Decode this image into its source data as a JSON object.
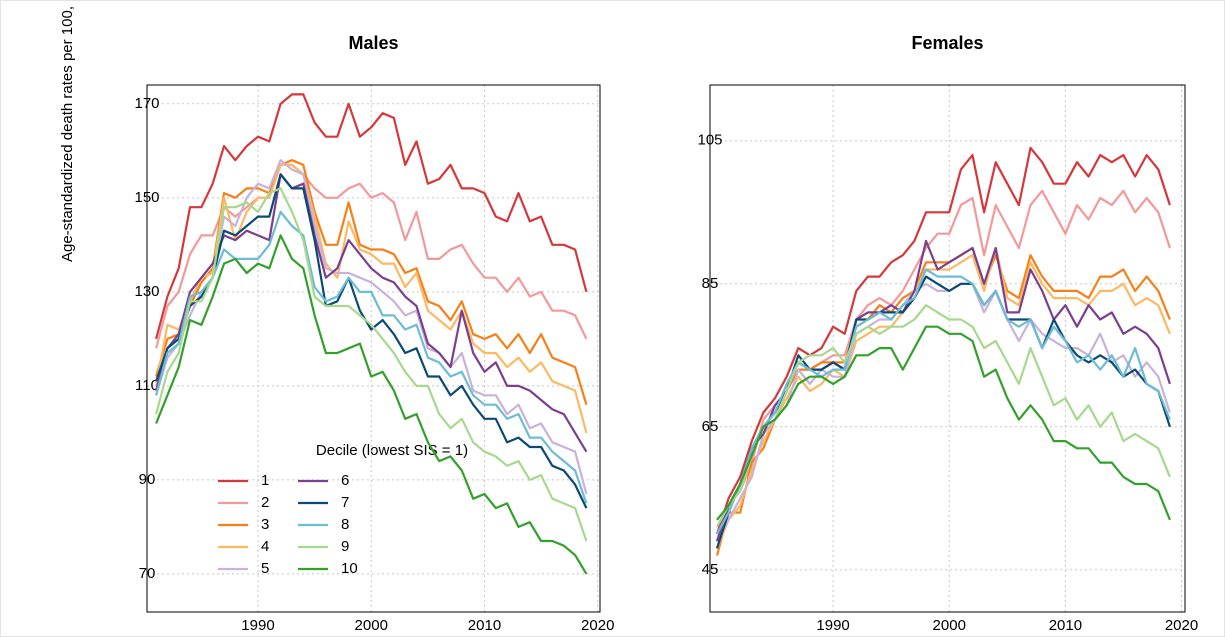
{
  "chart_data": [
    {
      "type": "line",
      "title": "Males",
      "ylabel": "Age-standardized death rates per 100,",
      "legend_title": "Decile (lowest SIS = 1)",
      "x": [
        1981,
        1982,
        1983,
        1984,
        1985,
        1986,
        1987,
        1988,
        1989,
        1990,
        1991,
        1992,
        1993,
        1994,
        1995,
        1996,
        1997,
        1998,
        1999,
        2000,
        2001,
        2002,
        2003,
        2004,
        2005,
        2006,
        2007,
        2008,
        2009,
        2010,
        2011,
        2012,
        2013,
        2014,
        2015,
        2016,
        2017,
        2018,
        2019
      ],
      "xlim": [
        1980.2,
        2020.2
      ],
      "xticks": [
        1990,
        2000,
        2010,
        2020
      ],
      "ylim": [
        61.9,
        174
      ],
      "yticks": [
        70,
        90,
        110,
        130,
        150,
        170
      ],
      "grid": true,
      "series": [
        {
          "name": "1",
          "color": "#d6373b",
          "values": [
            120,
            129,
            135,
            148,
            148,
            153,
            161,
            158,
            161,
            163,
            162,
            170,
            172,
            172,
            166,
            163,
            163,
            170,
            163,
            165,
            168,
            167,
            157,
            162,
            153,
            154,
            157,
            152,
            152,
            151,
            146,
            145,
            151,
            145,
            146,
            140,
            140,
            139,
            130
          ]
        },
        {
          "name": "2",
          "color": "#f4989a",
          "values": [
            118,
            127,
            130,
            138,
            142,
            142,
            148,
            146,
            148,
            150,
            150,
            157,
            157,
            155,
            152,
            150,
            150,
            152,
            153,
            150,
            151,
            149,
            141,
            147,
            137,
            137,
            139,
            140,
            136,
            133,
            133,
            130,
            133,
            129,
            130,
            126,
            126,
            125,
            120
          ]
        },
        {
          "name": "3",
          "color": "#f77f16",
          "values": [
            112,
            120,
            121,
            127,
            132,
            135,
            151,
            150,
            152,
            152,
            151,
            157,
            158,
            157,
            147,
            140,
            140,
            149,
            140,
            139,
            139,
            138,
            134,
            135,
            128,
            127,
            124,
            128,
            121,
            120,
            121,
            118,
            121,
            117,
            121,
            116,
            115,
            114,
            106
          ]
        },
        {
          "name": "4",
          "color": "#fdb863",
          "values": [
            110,
            123,
            122,
            128,
            133,
            134,
            150,
            141,
            147,
            150,
            150,
            157,
            157,
            155,
            146,
            136,
            133,
            145,
            139,
            138,
            136,
            136,
            131,
            134,
            126,
            124,
            122,
            126,
            119,
            117,
            117,
            114,
            116,
            113,
            115,
            111,
            110,
            109,
            100
          ]
        },
        {
          "name": "5",
          "color": "#c9b2d9",
          "values": [
            108,
            116,
            119,
            125,
            130,
            133,
            146,
            144,
            150,
            153,
            152,
            158,
            156,
            155,
            144,
            135,
            134,
            134,
            133,
            132,
            130,
            128,
            125,
            126,
            118,
            117,
            114,
            117,
            109,
            108,
            108,
            104,
            106,
            101,
            102,
            98,
            97,
            96,
            87
          ]
        },
        {
          "name": "6",
          "color": "#7b3f8f",
          "values": [
            109,
            118,
            121,
            130,
            133,
            136,
            142,
            141,
            143,
            142,
            141,
            155,
            152,
            153,
            142,
            133,
            135,
            141,
            138,
            135,
            133,
            132,
            129,
            127,
            119,
            117,
            114,
            126,
            117,
            113,
            115,
            110,
            110,
            109,
            107,
            105,
            104,
            100,
            96
          ]
        },
        {
          "name": "7",
          "color": "#0b4a74",
          "values": [
            111,
            118,
            120,
            127,
            129,
            133,
            143,
            142,
            144,
            146,
            146,
            155,
            152,
            152,
            141,
            127,
            128,
            133,
            126,
            122,
            124,
            121,
            117,
            118,
            112,
            112,
            108,
            110,
            106,
            103,
            103,
            98,
            99,
            97,
            97,
            93,
            92,
            89,
            84
          ]
        },
        {
          "name": "8",
          "color": "#6bbdd6",
          "values": [
            108,
            117,
            119,
            129,
            130,
            133,
            139,
            137,
            137,
            137,
            140,
            147,
            144,
            142,
            131,
            128,
            129,
            133,
            130,
            130,
            125,
            125,
            122,
            123,
            116,
            115,
            112,
            113,
            108,
            106,
            106,
            103,
            104,
            99,
            99,
            96,
            94,
            92,
            85
          ]
        },
        {
          "name": "9",
          "color": "#a8d88e",
          "values": [
            104,
            113,
            117,
            128,
            128,
            133,
            148,
            148,
            149,
            147,
            151,
            152,
            147,
            141,
            129,
            127,
            127,
            127,
            125,
            123,
            120,
            117,
            113,
            110,
            110,
            104,
            101,
            103,
            98,
            96,
            95,
            93,
            94,
            90,
            91,
            86,
            85,
            84,
            77
          ]
        },
        {
          "name": "10",
          "color": "#33a02c",
          "values": [
            102,
            108,
            114,
            124,
            123,
            129,
            136,
            137,
            134,
            136,
            135,
            142,
            137,
            135,
            125,
            117,
            117,
            118,
            119,
            112,
            113,
            109,
            103,
            104,
            98,
            94,
            95,
            92,
            86,
            87,
            84,
            85,
            80,
            81,
            77,
            77,
            76,
            74,
            70
          ]
        }
      ]
    },
    {
      "type": "line",
      "title": "Females",
      "x": [
        1980,
        1981,
        1982,
        1983,
        1984,
        1985,
        1986,
        1987,
        1988,
        1989,
        1990,
        1991,
        1992,
        1993,
        1994,
        1995,
        1996,
        1997,
        1998,
        1999,
        2000,
        2001,
        2002,
        2003,
        2004,
        2005,
        2006,
        2007,
        2008,
        2009,
        2010,
        2011,
        2012,
        2013,
        2014,
        2015,
        2016,
        2017,
        2018,
        2019
      ],
      "xlim": [
        1979.4,
        2020.3
      ],
      "xticks": [
        1990,
        2000,
        2010,
        2020
      ],
      "ylim": [
        39.1,
        112.8
      ],
      "yticks": [
        45,
        65,
        85,
        105
      ],
      "grid": true,
      "series": [
        {
          "color": "#d6373b",
          "values": [
            50,
            55,
            58,
            63,
            67,
            69,
            72,
            76,
            75,
            76,
            79,
            78,
            84,
            86,
            86,
            88,
            89,
            91,
            95,
            95,
            95,
            101,
            103,
            95,
            102,
            99,
            96,
            104,
            102,
            99,
            99,
            102,
            100,
            103,
            102,
            103,
            100,
            103,
            101,
            96
          ]
        },
        {
          "color": "#f4989a",
          "values": [
            49,
            54,
            56,
            60,
            66,
            68,
            70,
            74,
            73,
            74,
            75,
            75,
            80,
            82,
            83,
            82,
            84,
            87,
            90,
            92,
            92,
            96,
            97,
            89,
            96,
            93,
            90,
            96,
            98,
            95,
            92,
            96,
            94,
            97,
            96,
            98,
            95,
            97,
            95,
            90
          ]
        },
        {
          "color": "#f77f16",
          "values": [
            47,
            53,
            53,
            60,
            62,
            66,
            70,
            73,
            73,
            74,
            74,
            74,
            79,
            80,
            82,
            81,
            83,
            84,
            88,
            88,
            88,
            89,
            90,
            85,
            89,
            84,
            83,
            89,
            86,
            84,
            84,
            84,
            83,
            86,
            86,
            87,
            84,
            86,
            84,
            80
          ]
        },
        {
          "color": "#fdb863",
          "values": [
            48,
            52,
            54,
            59,
            63,
            66,
            69,
            72,
            70,
            71,
            73,
            72,
            77,
            78,
            79,
            79,
            81,
            84,
            87,
            87,
            87,
            88,
            89,
            84,
            90,
            83,
            82,
            88,
            85,
            83,
            83,
            83,
            82,
            84,
            84,
            85,
            82,
            83,
            82,
            78
          ]
        },
        {
          "color": "#c9b2d9",
          "values": [
            49,
            52,
            55,
            58,
            64,
            66,
            68,
            73,
            71,
            73,
            72,
            72,
            78,
            79,
            80,
            80,
            82,
            84,
            85,
            84,
            84,
            85,
            85,
            81,
            84,
            80,
            77,
            80,
            78,
            77,
            76,
            76,
            75,
            78,
            74,
            75,
            72,
            74,
            72,
            67
          ]
        },
        {
          "color": "#7b3f8f",
          "values": [
            49,
            54,
            57,
            62,
            64,
            68,
            70,
            74,
            73,
            73,
            74,
            73,
            80,
            81,
            81,
            82,
            81,
            84,
            91,
            87,
            88,
            89,
            90,
            85,
            90,
            81,
            81,
            87,
            84,
            80,
            82,
            79,
            82,
            80,
            81,
            78,
            79,
            78,
            76,
            71
          ]
        },
        {
          "color": "#0b4a74",
          "values": [
            48,
            53,
            57,
            62,
            65,
            67,
            70,
            75,
            73,
            73,
            74,
            73,
            80,
            80,
            81,
            81,
            81,
            83,
            86,
            85,
            84,
            85,
            85,
            82,
            84,
            80,
            80,
            80,
            76,
            80,
            77,
            75,
            74,
            75,
            74,
            72,
            73,
            71,
            70,
            65
          ]
        },
        {
          "color": "#6bbdd6",
          "values": [
            50,
            53,
            57,
            62,
            65,
            67,
            71,
            74,
            73,
            72,
            73,
            73,
            79,
            80,
            81,
            80,
            82,
            83,
            87,
            86,
            86,
            86,
            85,
            82,
            84,
            80,
            79,
            80,
            76,
            79,
            77,
            74,
            75,
            73,
            75,
            72,
            76,
            71,
            70,
            66
          ]
        },
        {
          "color": "#a8d88e",
          "values": [
            51,
            54,
            56,
            61,
            65,
            66,
            70,
            74,
            75,
            75,
            76,
            74,
            78,
            79,
            78,
            79,
            79,
            80,
            82,
            81,
            80,
            80,
            79,
            76,
            77,
            74,
            71,
            76,
            72,
            68,
            69,
            66,
            68,
            65,
            67,
            63,
            64,
            63,
            62,
            58
          ]
        },
        {
          "color": "#33a02c",
          "values": [
            52,
            54,
            57,
            61,
            65,
            66,
            68,
            71,
            72,
            72,
            71,
            72,
            75,
            75,
            76,
            76,
            73,
            76,
            79,
            79,
            78,
            78,
            77,
            72,
            73,
            69,
            66,
            68,
            66,
            63,
            63,
            62,
            62,
            60,
            60,
            58,
            57,
            57,
            56,
            52
          ]
        }
      ]
    }
  ]
}
